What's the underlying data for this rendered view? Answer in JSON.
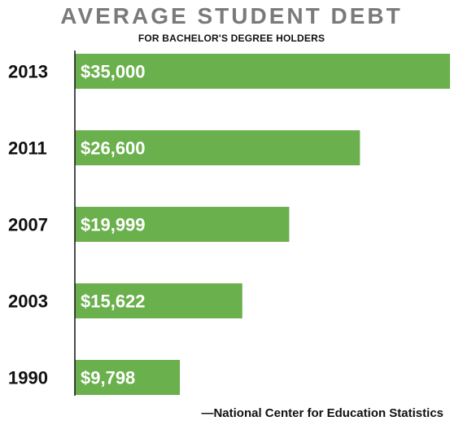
{
  "chart_data": {
    "type": "bar",
    "orientation": "horizontal",
    "title": "AVERAGE STUDENT DEBT",
    "subtitle": "FOR BACHELOR'S DEGREE HOLDERS",
    "categories": [
      "2013",
      "2011",
      "2007",
      "2003",
      "1990"
    ],
    "values": [
      35000,
      26600,
      19999,
      15622,
      9798
    ],
    "value_labels": [
      "$35,000",
      "$26,600",
      "$19,999",
      "$15,622",
      "$9,798"
    ],
    "xlim": [
      0,
      35000
    ],
    "grid": false,
    "legend": "none",
    "source": "—National Center for Education Statistics"
  },
  "colors": {
    "bar": "#6ab04c",
    "title": "#7a7a7a",
    "text": "#111111",
    "bar_label": "#ffffff",
    "axis": "#111111"
  }
}
